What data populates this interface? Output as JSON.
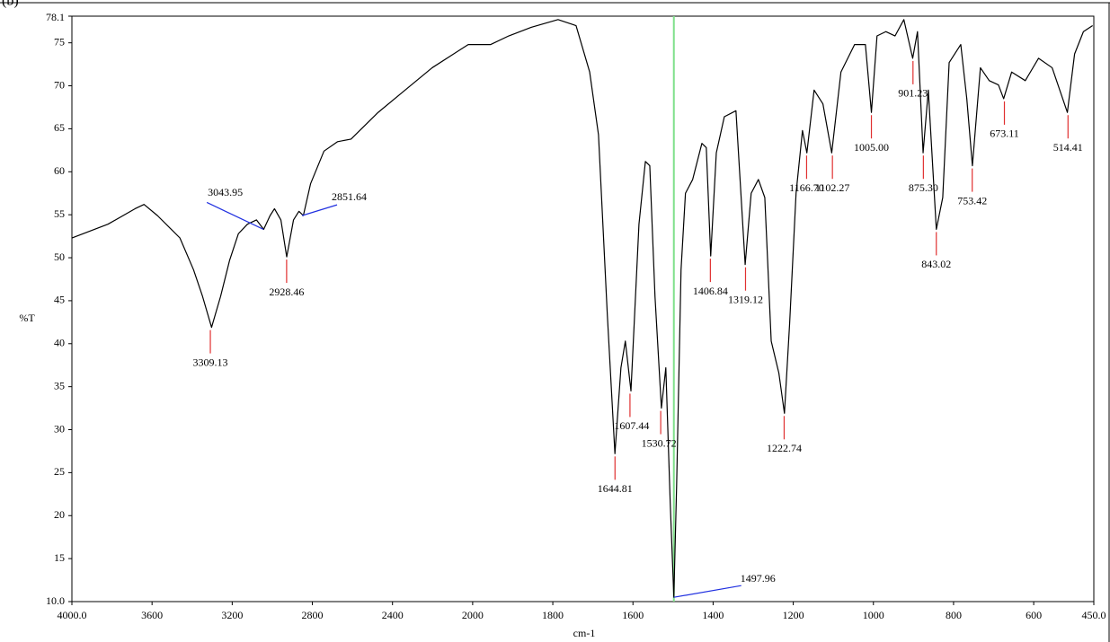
{
  "chart_data": {
    "type": "line",
    "panel_label": "(b)",
    "xlabel": "cm-1",
    "ylabel": "%T",
    "color": "#000000",
    "xlim": [
      4000,
      450
    ],
    "xscale": {
      "break": 2000,
      "ratio": 2
    },
    "ylim": [
      10.0,
      78.1
    ],
    "xticks": [
      {
        "value": 4000,
        "label": "4000.0"
      },
      3600,
      3200,
      2800,
      2400,
      2000,
      1800,
      1600,
      1400,
      1200,
      1000,
      800,
      600,
      {
        "value": 450,
        "label": "450.0"
      }
    ],
    "yticks": [
      {
        "value": 10,
        "label": "10.0"
      },
      15,
      20,
      25,
      30,
      35,
      40,
      45,
      50,
      55,
      60,
      65,
      70,
      75,
      78.1
    ],
    "x": [
      4000,
      3820,
      3685,
      3640,
      3573,
      3461,
      3393,
      3348,
      3303,
      3258,
      3213,
      3169,
      3124,
      3079,
      3043,
      3011,
      2989,
      2957,
      2928,
      2894,
      2867,
      2845,
      2809,
      2742,
      2674,
      2607,
      2472,
      2337,
      2202,
      2022,
      1955,
      1910,
      1854,
      1787,
      1742,
      1708,
      1686,
      1664,
      1645,
      1630,
      1619,
      1605,
      1585,
      1569,
      1558,
      1545,
      1529,
      1518,
      1507,
      1498,
      1491,
      1480,
      1469,
      1451,
      1428,
      1417,
      1406,
      1392,
      1372,
      1343,
      1334,
      1320,
      1305,
      1287,
      1271,
      1255,
      1236,
      1222,
      1209,
      1193,
      1177,
      1166,
      1148,
      1126,
      1104,
      1081,
      1047,
      1020,
      1005,
      991,
      969,
      946,
      924,
      902,
      890,
      876,
      863,
      843,
      827,
      811,
      782,
      767,
      753,
      733,
      711,
      688,
      675,
      655,
      621,
      588,
      554,
      516,
      498,
      476,
      453
    ],
    "values": [
      52.3,
      53.9,
      55.7,
      56.2,
      54.9,
      52.3,
      48.6,
      45.5,
      41.9,
      45.5,
      49.7,
      52.8,
      53.9,
      54.4,
      53.3,
      54.9,
      55.7,
      54.4,
      50.1,
      54.4,
      55.4,
      54.9,
      58.6,
      62.4,
      63.5,
      63.8,
      66.9,
      69.5,
      72.1,
      74.8,
      74.8,
      75.8,
      76.8,
      77.7,
      77.0,
      71.6,
      64.3,
      43.4,
      27.2,
      37.2,
      40.3,
      34.5,
      53.9,
      61.2,
      60.7,
      45.5,
      32.5,
      37.2,
      21.5,
      10.5,
      23.6,
      48.6,
      57.5,
      59.1,
      63.3,
      62.8,
      50.2,
      62.2,
      66.4,
      67.1,
      60.1,
      49.2,
      57.5,
      59.1,
      57.0,
      40.3,
      36.6,
      31.9,
      42.4,
      57.5,
      64.8,
      62.2,
      69.5,
      67.9,
      62.2,
      71.6,
      74.8,
      74.8,
      66.9,
      75.8,
      76.3,
      75.8,
      77.7,
      73.2,
      76.3,
      62.2,
      69.5,
      53.3,
      57.0,
      72.7,
      74.8,
      68.5,
      60.7,
      72.1,
      70.6,
      70.1,
      68.5,
      71.6,
      70.6,
      73.2,
      72.1,
      66.9,
      73.7,
      76.3,
      77.0
    ],
    "peaks": [
      {
        "value": 3309.13,
        "y": 41.9
      },
      {
        "value": 3043.95,
        "y": 53.3
      },
      {
        "value": 2928.46,
        "y": 50.1
      },
      {
        "value": 2851.64,
        "y": 54.9
      },
      {
        "value": 1644.81,
        "y": 27.2
      },
      {
        "value": 1607.44,
        "y": 34.5
      },
      {
        "value": 1530.72,
        "y": 32.5
      },
      {
        "value": 1497.96,
        "y": 10.5
      },
      {
        "value": 1406.84,
        "y": 50.2
      },
      {
        "value": 1319.12,
        "y": 49.2
      },
      {
        "value": 1222.74,
        "y": 31.9
      },
      {
        "value": 1166.7,
        "label": "1166.70",
        "y": 62.2
      },
      {
        "value": 1102.27,
        "y": 62.2
      },
      {
        "value": 1005.0,
        "label": "1005.00",
        "y": 66.9
      },
      {
        "value": 901.23,
        "y": 73.2
      },
      {
        "value": 875.3,
        "label": "875.30",
        "y": 62.2
      },
      {
        "value": 843.02,
        "y": 53.3
      },
      {
        "value": 753.42,
        "y": 60.7
      },
      {
        "value": 673.11,
        "y": 68.5
      },
      {
        "value": 514.41,
        "y": 66.9
      }
    ]
  }
}
